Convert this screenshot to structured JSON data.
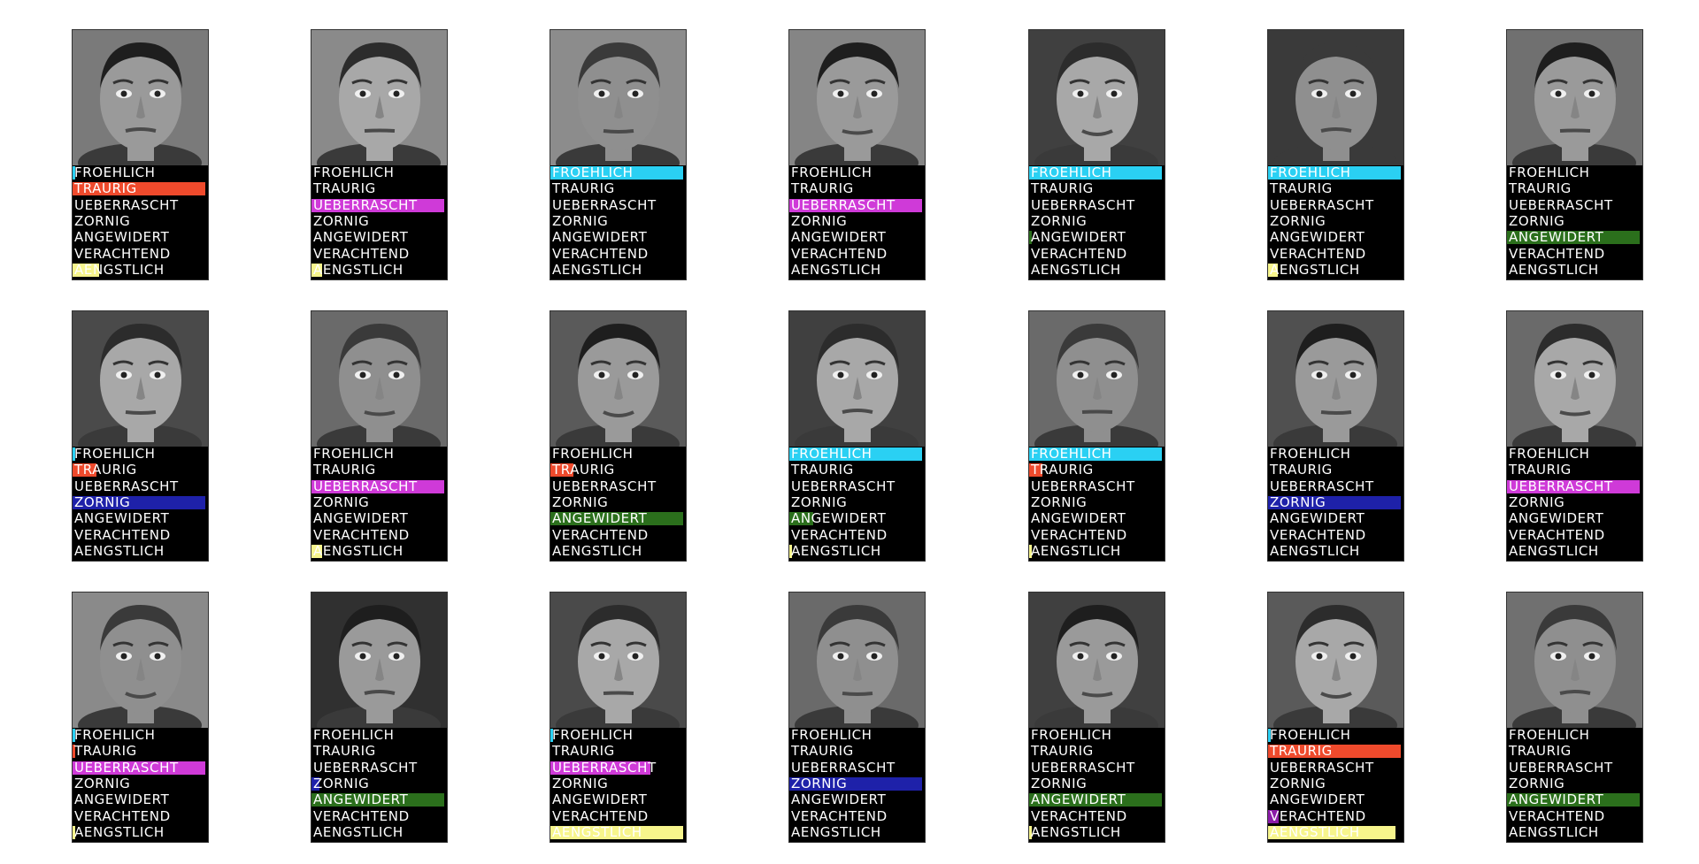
{
  "emotion_labels": [
    "FROEHLICH",
    "TRAURIG",
    "UEBERRASCHT",
    "ZORNIG",
    "ANGEWIDERT",
    "VERACHTEND",
    "AENGSTLICH"
  ],
  "emotion_colors": [
    "#2ad0f3",
    "#ef4a2c",
    "#cf3ad8",
    "#1e21a9",
    "#2b6f1c",
    "#8b1ba8",
    "#f7f58c"
  ],
  "panels": [
    {
      "face_icon": "face-photo-icon",
      "background": "#7a7a7a",
      "levels": [
        0.02,
        1.0,
        0.0,
        0.0,
        0.0,
        0.0,
        0.2
      ]
    },
    {
      "face_icon": "face-photo-icon",
      "background": "#8a8a8a",
      "levels": [
        0.0,
        0.0,
        1.0,
        0.0,
        0.0,
        0.0,
        0.08
      ]
    },
    {
      "face_icon": "face-photo-icon",
      "background": "#8c8c8c",
      "levels": [
        1.0,
        0.0,
        0.0,
        0.0,
        0.0,
        0.0,
        0.0
      ]
    },
    {
      "face_icon": "face-photo-icon",
      "background": "#858585",
      "levels": [
        0.0,
        0.0,
        1.0,
        0.0,
        0.0,
        0.0,
        0.0
      ]
    },
    {
      "face_icon": "face-photo-icon",
      "background": "#404040",
      "levels": [
        1.0,
        0.0,
        0.0,
        0.0,
        0.02,
        0.0,
        0.0
      ]
    },
    {
      "face_icon": "face-photo-icon",
      "background": "#3a3a3a",
      "levels": [
        1.0,
        0.0,
        0.0,
        0.0,
        0.0,
        0.0,
        0.07
      ]
    },
    {
      "face_icon": "face-photo-icon",
      "background": "#707070",
      "levels": [
        0.0,
        0.0,
        0.0,
        0.0,
        1.0,
        0.0,
        0.0
      ]
    },
    {
      "face_icon": "face-photo-icon",
      "background": "#4a4a4a",
      "levels": [
        0.02,
        0.18,
        0.0,
        1.0,
        0.0,
        0.0,
        0.0
      ]
    },
    {
      "face_icon": "face-photo-icon",
      "background": "#6a6a6a",
      "levels": [
        0.0,
        0.0,
        1.0,
        0.0,
        0.0,
        0.0,
        0.08
      ]
    },
    {
      "face_icon": "face-photo-icon",
      "background": "#5a5a5a",
      "levels": [
        0.0,
        0.17,
        0.0,
        0.0,
        1.0,
        0.0,
        0.0
      ]
    },
    {
      "face_icon": "face-photo-icon",
      "background": "#404040",
      "levels": [
        1.0,
        0.0,
        0.0,
        0.0,
        0.18,
        0.0,
        0.02
      ]
    },
    {
      "face_icon": "face-photo-icon",
      "background": "#6a6a6a",
      "levels": [
        1.0,
        0.1,
        0.0,
        0.0,
        0.0,
        0.0,
        0.02
      ]
    },
    {
      "face_icon": "face-photo-icon",
      "background": "#505050",
      "levels": [
        0.0,
        0.0,
        0.0,
        1.0,
        0.0,
        0.0,
        0.0
      ]
    },
    {
      "face_icon": "face-photo-icon",
      "background": "#6a6a6a",
      "levels": [
        0.0,
        0.0,
        1.0,
        0.0,
        0.0,
        0.0,
        0.0
      ]
    },
    {
      "face_icon": "face-photo-icon",
      "background": "#8a8a8a",
      "levels": [
        0.02,
        0.02,
        1.0,
        0.0,
        0.0,
        0.0,
        0.02
      ]
    },
    {
      "face_icon": "face-photo-icon",
      "background": "#303030",
      "levels": [
        0.0,
        0.0,
        0.0,
        0.06,
        1.0,
        0.0,
        0.0
      ]
    },
    {
      "face_icon": "face-photo-icon",
      "background": "#4a4a4a",
      "levels": [
        0.02,
        0.0,
        0.75,
        0.0,
        0.0,
        0.0,
        1.0
      ]
    },
    {
      "face_icon": "face-photo-icon",
      "background": "#6a6a6a",
      "levels": [
        0.0,
        0.0,
        0.0,
        1.0,
        0.0,
        0.0,
        0.0
      ]
    },
    {
      "face_icon": "face-photo-icon",
      "background": "#404040",
      "levels": [
        0.0,
        0.0,
        0.0,
        0.0,
        1.0,
        0.0,
        0.02
      ]
    },
    {
      "face_icon": "face-photo-icon",
      "background": "#5a5a5a",
      "levels": [
        0.02,
        1.0,
        0.0,
        0.0,
        0.0,
        0.08,
        0.96
      ]
    },
    {
      "face_icon": "face-photo-icon",
      "background": "#707070",
      "levels": [
        0.0,
        0.0,
        0.0,
        0.0,
        1.0,
        0.0,
        0.0
      ]
    }
  ]
}
